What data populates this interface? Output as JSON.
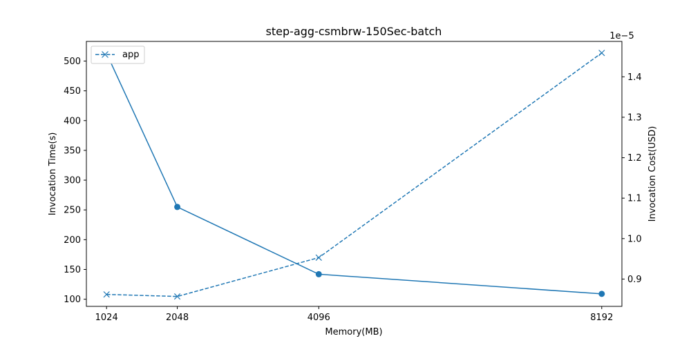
{
  "chart_data": {
    "type": "line",
    "title": "step-agg-csmbrw-150Sec-batch",
    "xlabel": "Memory(MB)",
    "ylabel_left": "Invocation Time(s)",
    "ylabel_right": "Invocation Cost(USD)",
    "right_offset_text": "1e−5",
    "x": [
      1024,
      2048,
      4096,
      8192
    ],
    "x_tick_labels": [
      "1024",
      "2048",
      "4096",
      "8192"
    ],
    "xlim": [
      732,
      8484
    ],
    "ylim_left": [
      88,
      533
    ],
    "ylim_right": [
      0.8325,
      1.4875
    ],
    "left_ticks": [
      100,
      150,
      200,
      250,
      300,
      350,
      400,
      450,
      500
    ],
    "right_ticks": [
      0.9,
      1.0,
      1.1,
      1.2,
      1.3,
      1.4
    ],
    "series": [
      {
        "axis": "left",
        "values": [
          513,
          255,
          142,
          109
        ],
        "style": "solid",
        "marker": "circle",
        "color": "#1f77b4"
      },
      {
        "name": "app",
        "axis": "right",
        "values": [
          0.862,
          0.857,
          0.953,
          1.459
        ],
        "style": "dashed",
        "marker": "x",
        "color": "#1f77b4"
      }
    ],
    "legend": {
      "placement": "top-left",
      "entries": [
        "app"
      ]
    },
    "grid": false
  }
}
